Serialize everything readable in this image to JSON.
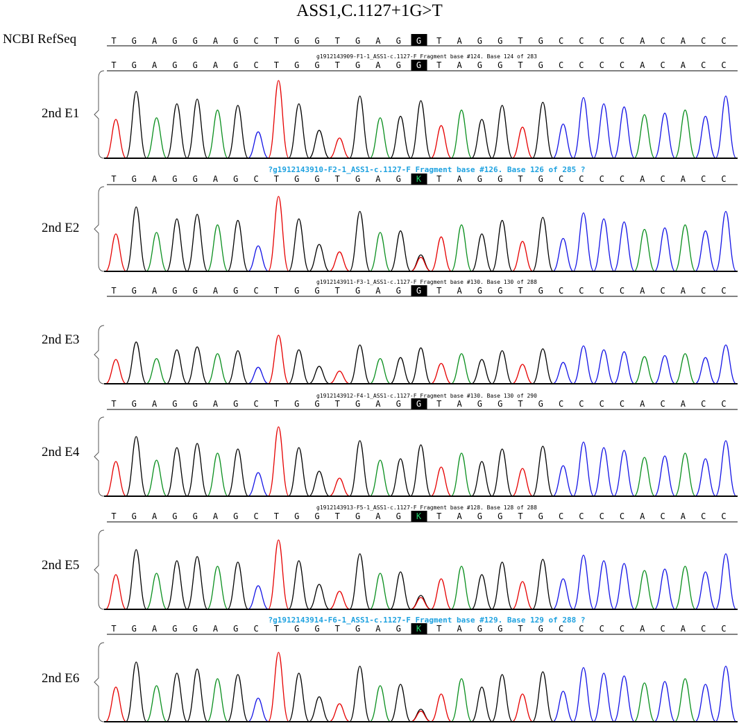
{
  "title": "ASS1,C.1127+1G>T",
  "reference": {
    "label": "NCBI RefSeq",
    "sequence": [
      "T",
      "G",
      "A",
      "G",
      "G",
      "A",
      "G",
      "C",
      "T",
      "G",
      "G",
      "T",
      "G",
      "A",
      "G",
      "G",
      "T",
      "A",
      "G",
      "G",
      "T",
      "G",
      "C",
      "C",
      "C",
      "C",
      "A",
      "C",
      "A",
      "C",
      "C"
    ],
    "highlight_index": 15
  },
  "colors": {
    "A": "#0a8f1e",
    "C": "#1414e6",
    "G": "#000000",
    "T": "#e60000",
    "fragment_blue": "#1fa2e0",
    "highlight_bg": "#000000",
    "heterozygous_letter": "#22d26a"
  },
  "panels": [
    {
      "label": "2nd E1",
      "header": "g1912143909-F1-1_ASS1-c.1127-F Fragment base #124. Base 124 of 283",
      "header_style": "small",
      "sequence": [
        "T",
        "G",
        "A",
        "G",
        "G",
        "A",
        "G",
        "C",
        "T",
        "G",
        "G",
        "T",
        "G",
        "A",
        "G",
        "G",
        "T",
        "A",
        "G",
        "G",
        "T",
        "G",
        "C",
        "C",
        "C",
        "C",
        "A",
        "C",
        "A",
        "C",
        "C"
      ],
      "call_at_site": "G"
    },
    {
      "label": "2nd E2",
      "header": "?g1912143910-F2-1_ASS1-c.1127-F Fragment base #126. Base 126 of 285 ?",
      "header_style": "blue",
      "sequence": [
        "T",
        "G",
        "A",
        "G",
        "G",
        "A",
        "G",
        "C",
        "T",
        "G",
        "G",
        "T",
        "G",
        "A",
        "G",
        "K",
        "T",
        "A",
        "G",
        "G",
        "T",
        "G",
        "C",
        "C",
        "C",
        "C",
        "A",
        "C",
        "A",
        "C",
        "C"
      ],
      "call_at_site": "K"
    },
    {
      "label": "2nd E3",
      "header": "g1912143911-F3-1_ASS1-c.1127-F Fragment base #130. Base 130 of 288",
      "header_style": "small",
      "sequence": [
        "T",
        "G",
        "A",
        "G",
        "G",
        "A",
        "G",
        "C",
        "T",
        "G",
        "G",
        "T",
        "G",
        "A",
        "G",
        "G",
        "T",
        "A",
        "G",
        "G",
        "T",
        "G",
        "C",
        "C",
        "C",
        "C",
        "A",
        "C",
        "A",
        "C",
        "C"
      ],
      "call_at_site": "G"
    },
    {
      "label": "2nd E4",
      "header": "g1912143912-F4-1_ASS1-c.1127-F Fragment base #130. Base 130 of 290",
      "header_style": "small",
      "sequence": [
        "T",
        "G",
        "A",
        "G",
        "G",
        "A",
        "G",
        "C",
        "T",
        "G",
        "G",
        "T",
        "G",
        "A",
        "G",
        "G",
        "T",
        "A",
        "G",
        "G",
        "T",
        "G",
        "C",
        "C",
        "C",
        "C",
        "A",
        "C",
        "A",
        "C",
        "C"
      ],
      "call_at_site": "G"
    },
    {
      "label": "2nd E5",
      "header": "g1912143913-F5-1_ASS1-c.1127-F Fragment base #128. Base 128 of 288",
      "header_style": "small",
      "sequence": [
        "T",
        "G",
        "A",
        "G",
        "G",
        "A",
        "G",
        "C",
        "T",
        "G",
        "G",
        "T",
        "G",
        "A",
        "G",
        "K",
        "T",
        "A",
        "G",
        "G",
        "T",
        "G",
        "C",
        "C",
        "C",
        "C",
        "A",
        "C",
        "A",
        "C",
        "C"
      ],
      "call_at_site": "K"
    },
    {
      "label": "2nd E6",
      "header": "?g1912143914-F6-1_ASS1-c.1127-F Fragment base #129. Base 129 of 288 ?",
      "header_style": "blue",
      "sequence": [
        "T",
        "G",
        "A",
        "G",
        "G",
        "A",
        "G",
        "C",
        "T",
        "G",
        "G",
        "T",
        "G",
        "A",
        "G",
        "K",
        "T",
        "A",
        "G",
        "G",
        "T",
        "G",
        "C",
        "C",
        "C",
        "C",
        "A",
        "C",
        "A",
        "C",
        "C"
      ],
      "call_at_site": "K"
    }
  ]
}
